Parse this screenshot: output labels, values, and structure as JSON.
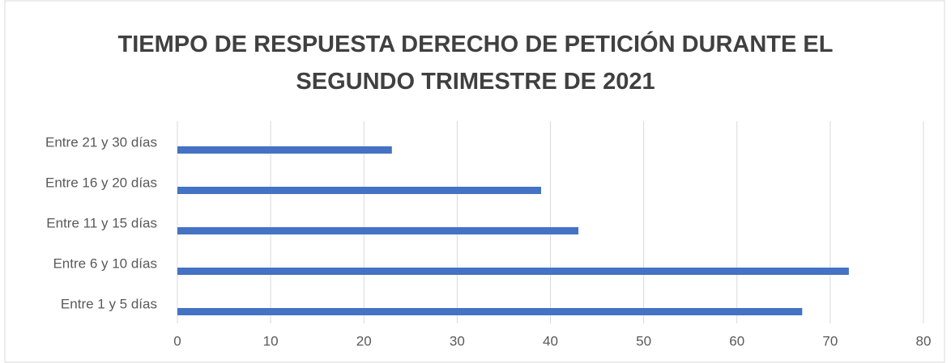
{
  "chart_data": {
    "type": "bar",
    "orientation": "horizontal",
    "title": "TIEMPO DE RESPUESTA DERECHO DE PETICIÓN DURANTE EL SEGUNDO TRIMESTRE DE 2021",
    "categories": [
      "Entre 21 y 30 días",
      "Entre 16 y 20 días",
      "Entre 11 y 15 días",
      "Entre 6 y 10 días",
      "Entre 1 y 5 días"
    ],
    "values": [
      23,
      39,
      43,
      72,
      67
    ],
    "color": "#4472c4",
    "xlim": [
      0,
      80
    ],
    "xticks": [
      0,
      10,
      20,
      30,
      40,
      50,
      60,
      70,
      80
    ],
    "grid": true
  }
}
